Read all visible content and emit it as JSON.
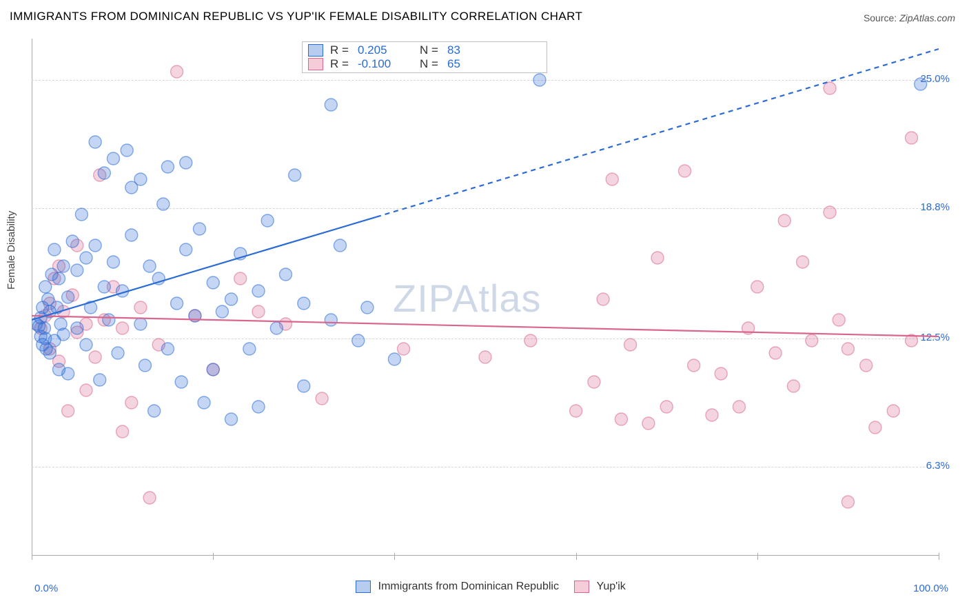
{
  "title": "IMMIGRANTS FROM DOMINICAN REPUBLIC VS YUP'IK FEMALE DISABILITY CORRELATION CHART",
  "source_label": "Source:",
  "source_name": "ZipAtlas.com",
  "watermark": "ZIPAtlas",
  "ylabel": "Female Disability",
  "chart": {
    "type": "scatter",
    "xlim": [
      0,
      100
    ],
    "ylim": [
      2,
      27
    ],
    "x_ticks": [
      0,
      20,
      40,
      60,
      80,
      100
    ],
    "x_tick_labels": {
      "0": "0.0%",
      "100": "100.0%"
    },
    "y_gridlines": [
      6.3,
      12.5,
      18.8,
      25.0
    ],
    "y_grid_labels": [
      "6.3%",
      "12.5%",
      "18.8%",
      "25.0%"
    ],
    "grid_color": "#d6d6d6",
    "axis_color": "#aaaaaa",
    "axis_label_color": "#2a6bd6",
    "background_color": "#ffffff",
    "marker_radius": 9,
    "marker_fill_opacity": 0.28,
    "marker_stroke_width": 1.4,
    "trendline_width": 2.2,
    "series": [
      {
        "name": "Immigrants from Dominican Republic",
        "color": "#2a6bd6",
        "fill": "#b7cdef",
        "r_value": "0.205",
        "n_value": "83",
        "trend": {
          "y_at_x0": 13.4,
          "y_at_x100": 26.5,
          "solid_until_x": 38
        },
        "points": [
          [
            0.5,
            13.2
          ],
          [
            0.8,
            13.1
          ],
          [
            1.0,
            12.6
          ],
          [
            1.0,
            13.5
          ],
          [
            1.2,
            12.2
          ],
          [
            1.2,
            14.0
          ],
          [
            1.4,
            13.0
          ],
          [
            1.5,
            12.5
          ],
          [
            1.5,
            15.0
          ],
          [
            1.6,
            12.0
          ],
          [
            1.8,
            14.4
          ],
          [
            2.0,
            11.8
          ],
          [
            2.0,
            13.8
          ],
          [
            2.2,
            15.6
          ],
          [
            2.5,
            12.4
          ],
          [
            2.5,
            16.8
          ],
          [
            2.8,
            14.0
          ],
          [
            3.0,
            11.0
          ],
          [
            3.0,
            15.4
          ],
          [
            3.2,
            13.2
          ],
          [
            3.5,
            16.0
          ],
          [
            3.5,
            12.7
          ],
          [
            4.0,
            10.8
          ],
          [
            4.0,
            14.5
          ],
          [
            4.5,
            17.2
          ],
          [
            5.0,
            13.0
          ],
          [
            5.0,
            15.8
          ],
          [
            5.5,
            18.5
          ],
          [
            6.0,
            12.2
          ],
          [
            6.0,
            16.4
          ],
          [
            6.5,
            14.0
          ],
          [
            7.0,
            22.0
          ],
          [
            7.0,
            17.0
          ],
          [
            7.5,
            10.5
          ],
          [
            8.0,
            15.0
          ],
          [
            8.0,
            20.5
          ],
          [
            8.5,
            13.4
          ],
          [
            9.0,
            16.2
          ],
          [
            9.0,
            21.2
          ],
          [
            9.5,
            11.8
          ],
          [
            10.0,
            14.8
          ],
          [
            10.5,
            21.6
          ],
          [
            11.0,
            17.5
          ],
          [
            11.0,
            19.8
          ],
          [
            12.0,
            13.2
          ],
          [
            12.0,
            20.2
          ],
          [
            12.5,
            11.2
          ],
          [
            13.0,
            16.0
          ],
          [
            13.5,
            9.0
          ],
          [
            14.0,
            15.4
          ],
          [
            14.5,
            19.0
          ],
          [
            15.0,
            12.0
          ],
          [
            15.0,
            20.8
          ],
          [
            16.0,
            14.2
          ],
          [
            16.5,
            10.4
          ],
          [
            17.0,
            16.8
          ],
          [
            17.0,
            21.0
          ],
          [
            18.0,
            13.6
          ],
          [
            18.5,
            17.8
          ],
          [
            19.0,
            9.4
          ],
          [
            20.0,
            15.2
          ],
          [
            20.0,
            11.0
          ],
          [
            21.0,
            13.8
          ],
          [
            22.0,
            8.6
          ],
          [
            22.0,
            14.4
          ],
          [
            23.0,
            16.6
          ],
          [
            24.0,
            12.0
          ],
          [
            25.0,
            9.2
          ],
          [
            25.0,
            14.8
          ],
          [
            26.0,
            18.2
          ],
          [
            27.0,
            13.0
          ],
          [
            28.0,
            15.6
          ],
          [
            29.0,
            20.4
          ],
          [
            30.0,
            14.2
          ],
          [
            30.0,
            10.2
          ],
          [
            33.0,
            13.4
          ],
          [
            33.0,
            23.8
          ],
          [
            34.0,
            17.0
          ],
          [
            36.0,
            12.4
          ],
          [
            37.0,
            14.0
          ],
          [
            40.0,
            11.5
          ],
          [
            56.0,
            25.0
          ],
          [
            98.0,
            24.8
          ]
        ]
      },
      {
        "name": "Yup'ik",
        "color": "#d9668e",
        "fill": "#f4cdd9",
        "r_value": "-0.100",
        "n_value": "65",
        "trend": {
          "y_at_x0": 13.6,
          "y_at_x100": 12.6,
          "solid_until_x": 100
        },
        "points": [
          [
            1.0,
            13.0
          ],
          [
            1.5,
            13.6
          ],
          [
            2.0,
            12.0
          ],
          [
            2.0,
            14.2
          ],
          [
            2.5,
            15.4
          ],
          [
            3.0,
            11.4
          ],
          [
            3.0,
            16.0
          ],
          [
            3.5,
            13.8
          ],
          [
            4.0,
            9.0
          ],
          [
            4.5,
            14.6
          ],
          [
            5.0,
            12.8
          ],
          [
            5.0,
            17.0
          ],
          [
            6.0,
            10.0
          ],
          [
            6.0,
            13.2
          ],
          [
            7.0,
            11.6
          ],
          [
            7.5,
            20.4
          ],
          [
            8.0,
            13.4
          ],
          [
            9.0,
            15.0
          ],
          [
            10.0,
            8.0
          ],
          [
            10.0,
            13.0
          ],
          [
            11.0,
            9.4
          ],
          [
            12.0,
            14.0
          ],
          [
            13.0,
            4.8
          ],
          [
            14.0,
            12.2
          ],
          [
            16.0,
            25.4
          ],
          [
            18.0,
            13.6
          ],
          [
            20.0,
            11.0
          ],
          [
            23.0,
            15.4
          ],
          [
            25.0,
            13.8
          ],
          [
            28.0,
            13.2
          ],
          [
            32.0,
            9.6
          ],
          [
            41.0,
            12.0
          ],
          [
            50.0,
            11.6
          ],
          [
            55.0,
            12.4
          ],
          [
            60.0,
            9.0
          ],
          [
            62.0,
            10.4
          ],
          [
            63.0,
            14.4
          ],
          [
            64.0,
            20.2
          ],
          [
            65.0,
            8.6
          ],
          [
            66.0,
            12.2
          ],
          [
            68.0,
            8.4
          ],
          [
            69.0,
            16.4
          ],
          [
            70.0,
            9.2
          ],
          [
            72.0,
            20.6
          ],
          [
            73.0,
            11.2
          ],
          [
            75.0,
            8.8
          ],
          [
            76.0,
            10.8
          ],
          [
            78.0,
            9.2
          ],
          [
            79.0,
            13.0
          ],
          [
            80.0,
            15.0
          ],
          [
            82.0,
            11.8
          ],
          [
            83.0,
            18.2
          ],
          [
            84.0,
            10.2
          ],
          [
            85.0,
            16.2
          ],
          [
            86.0,
            12.4
          ],
          [
            88.0,
            24.6
          ],
          [
            88.0,
            18.6
          ],
          [
            89.0,
            13.4
          ],
          [
            90.0,
            12.0
          ],
          [
            90.0,
            4.6
          ],
          [
            92.0,
            11.2
          ],
          [
            93.0,
            8.2
          ],
          [
            95.0,
            9.0
          ],
          [
            97.0,
            12.4
          ],
          [
            97.0,
            22.2
          ]
        ]
      }
    ]
  },
  "legend_bottom": [
    {
      "label": "Immigrants from Dominican Republic",
      "fill": "#b7cdef",
      "stroke": "#2a6bd6"
    },
    {
      "label": "Yup'ik",
      "fill": "#f4cdd9",
      "stroke": "#d9668e"
    }
  ]
}
